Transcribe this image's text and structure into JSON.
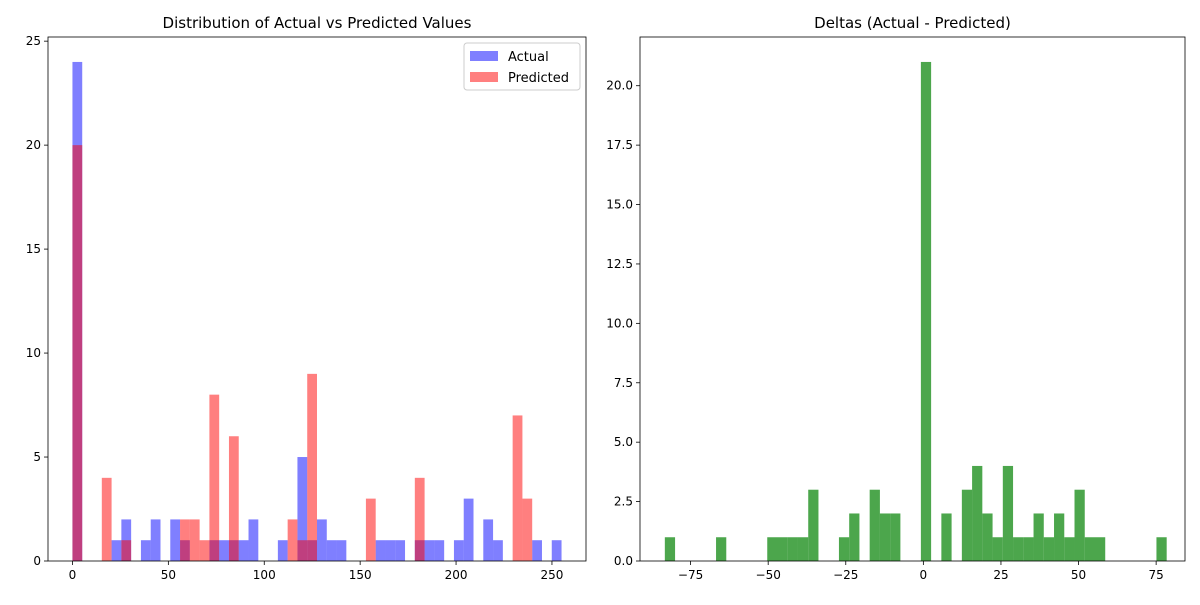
{
  "chart_data": [
    {
      "type": "histogram",
      "title": "Distribution of Actual vs Predicted Values",
      "xlabel": "",
      "ylabel": "",
      "xlim": [
        -12.75,
        267.75
      ],
      "ylim": [
        0,
        25.2
      ],
      "xticks": [
        0,
        50,
        100,
        150,
        200,
        250
      ],
      "yticks": [
        0,
        5,
        10,
        15,
        20,
        25
      ],
      "bin_width": 5.1,
      "bin_start": 0,
      "legend_position": "top-right",
      "series": [
        {
          "name": "Actual",
          "color": "#0000ff",
          "opacity": 0.5,
          "bin_counts": [
            24,
            0,
            0,
            0,
            1,
            2,
            0,
            1,
            2,
            0,
            2,
            1,
            0,
            0,
            1,
            1,
            1,
            1,
            2,
            0,
            0,
            1,
            0,
            5,
            1,
            2,
            1,
            1,
            0,
            0,
            0,
            1,
            1,
            1,
            0,
            1,
            1,
            1,
            0,
            1,
            3,
            0,
            2,
            1,
            0,
            0,
            0,
            1,
            0,
            1
          ]
        },
        {
          "name": "Predicted",
          "color": "#ff0000",
          "opacity": 0.5,
          "bin_counts": [
            20,
            0,
            0,
            4,
            0,
            1,
            0,
            0,
            0,
            0,
            0,
            2,
            2,
            1,
            8,
            0,
            6,
            0,
            0,
            0,
            0,
            0,
            2,
            1,
            9,
            0,
            0,
            0,
            0,
            0,
            3,
            0,
            0,
            0,
            0,
            4,
            0,
            0,
            0,
            0,
            0,
            0,
            0,
            0,
            0,
            7,
            3,
            0,
            0,
            0
          ]
        }
      ]
    },
    {
      "type": "histogram",
      "title": "Deltas (Actual - Predicted)",
      "xlabel": "",
      "ylabel": "",
      "xlim": [
        -91.3,
        84.3
      ],
      "ylim": [
        0,
        22.05
      ],
      "xticks": [
        -75,
        -50,
        -25,
        0,
        25,
        50,
        75
      ],
      "xtick_labels": [
        "−75",
        "−50",
        "−25",
        "0",
        "25",
        "50",
        "75"
      ],
      "yticks": [
        0,
        2.5,
        5,
        7.5,
        10,
        12.5,
        15,
        17.5,
        20
      ],
      "ytick_labels": [
        "0.0",
        "2.5",
        "5.0",
        "7.5",
        "10.0",
        "12.5",
        "15.0",
        "17.5",
        "20.0"
      ],
      "bin_width": 3.3,
      "bin_start": -83.3,
      "series": [
        {
          "color": "#008000",
          "opacity": 0.7,
          "bin_counts": [
            1,
            0,
            0,
            0,
            0,
            1,
            0,
            0,
            0,
            0,
            1,
            1,
            1,
            1,
            3,
            0,
            0,
            1,
            2,
            0,
            3,
            2,
            2,
            0,
            0,
            21,
            0,
            2,
            0,
            3,
            4,
            2,
            1,
            4,
            1,
            1,
            2,
            1,
            2,
            1,
            3,
            1,
            1,
            0,
            0,
            0,
            0,
            0,
            1
          ]
        }
      ]
    }
  ]
}
